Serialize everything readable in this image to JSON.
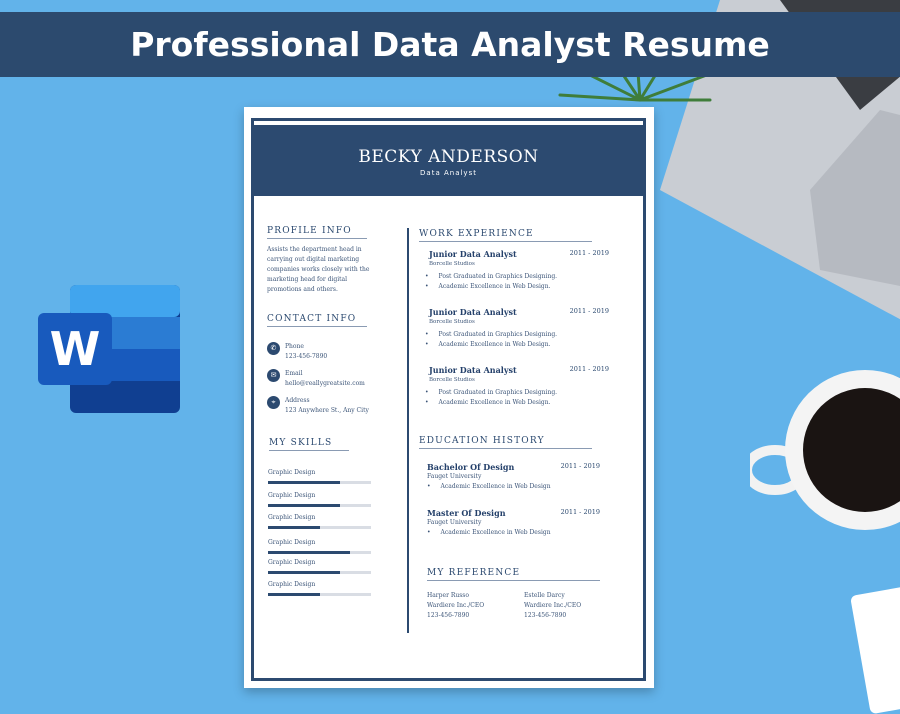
{
  "banner": {
    "title": "Professional Data Analyst Resume"
  },
  "app_icon": {
    "name": "word-icon",
    "letter": "W",
    "colors": [
      "#41a5ee",
      "#2b7cd3",
      "#185abd",
      "#103f91"
    ]
  },
  "resume": {
    "name": "BECKY ANDERSON",
    "role": "Data Analyst",
    "profile": {
      "heading": "PROFILE INFO",
      "text": "Assists the department head in carrying out digital marketing companies works closely with the marketing head for digital promotions and others."
    },
    "contact": {
      "heading": "CONTACT INFO",
      "items": [
        {
          "icon": "phone-icon",
          "label": "Phone",
          "value": "123-456-7890"
        },
        {
          "icon": "email-icon",
          "label": "Email",
          "value": "hello@reallygreatsite.com"
        },
        {
          "icon": "location-icon",
          "label": "Address",
          "value": "123 Anywhere St., Any City"
        }
      ]
    },
    "skills": {
      "heading": "MY SKILLS",
      "items": [
        {
          "label": "Graphic Design",
          "level": 0.7
        },
        {
          "label": "Graphic Design",
          "level": 0.7
        },
        {
          "label": "Graphic Design",
          "level": 0.5
        },
        {
          "label": "Graphic Design",
          "level": 0.8
        },
        {
          "label": "Graphic Design",
          "level": 0.7
        },
        {
          "label": "Graphic Design",
          "level": 0.5
        }
      ]
    },
    "work": {
      "heading": "WORK EXPERIENCE",
      "items": [
        {
          "title": "Junior Data Analyst",
          "company": "Borcelle Studios",
          "years": "2011 - 2019",
          "bullets": [
            "Post Graduated in Graphics Designing.",
            "Academic Excellence in Web Design."
          ]
        },
        {
          "title": "Junior Data Analyst",
          "company": "Borcelle Studios",
          "years": "2011 - 2019",
          "bullets": [
            "Post Graduated in Graphics Designing.",
            "Academic Excellence in Web Design."
          ]
        },
        {
          "title": "Junior Data Analyst",
          "company": "Borcelle Studios",
          "years": "2011 - 2019",
          "bullets": [
            "Post Graduated in Graphics Designing.",
            "Academic Excellence in Web Design."
          ]
        }
      ]
    },
    "education": {
      "heading": "EDUCATION HISTORY",
      "items": [
        {
          "title": "Bachelor Of Design",
          "school": "Fauget University",
          "years": "2011 - 2019",
          "bullets": [
            "Academic Excellence in Web Design"
          ]
        },
        {
          "title": "Master Of Design",
          "school": "Fauget University",
          "years": "2011 - 2019",
          "bullets": [
            "Academic Excellence in Web Design"
          ]
        }
      ]
    },
    "reference": {
      "heading": "MY REFERENCE",
      "items": [
        {
          "name": "Harper Russo",
          "org": "Wardiere Inc./CEO",
          "phone": "123-456-7890"
        },
        {
          "name": "Estelle Darcy",
          "org": "Wardiere Inc./CEO",
          "phone": "123-456-7890"
        }
      ]
    }
  }
}
